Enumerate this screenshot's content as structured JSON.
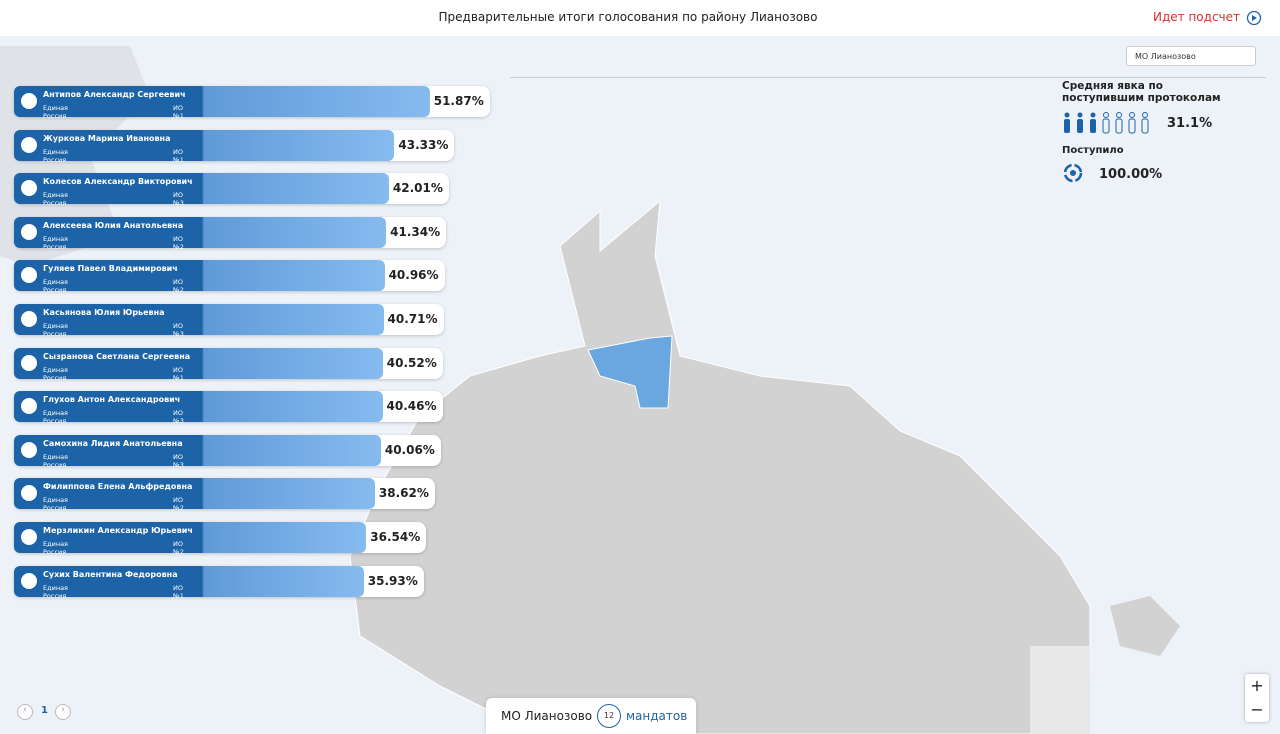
{
  "header": {
    "title": "Предварительные итоги голосования по району Лианозово",
    "status": "Идет подсчет"
  },
  "district_select": "МО Лианозово",
  "candidates": [
    {
      "name": "Антипов Александр Сергеевич",
      "party": "Единая Россия",
      "district": "ИО №1",
      "value": 51.87,
      "value_label": "51.87%"
    },
    {
      "name": "Журкова Марина Ивановна",
      "party": "Единая Россия",
      "district": "ИО №1",
      "value": 43.33,
      "value_label": "43.33%"
    },
    {
      "name": "Колесов Александр Викторович",
      "party": "Единая Россия",
      "district": "ИО №3",
      "value": 42.01,
      "value_label": "42.01%"
    },
    {
      "name": "Алексеева Юлия Анатольевна",
      "party": "Единая Россия",
      "district": "ИО №2",
      "value": 41.34,
      "value_label": "41.34%"
    },
    {
      "name": "Гуляев Павел Владимирович",
      "party": "Единая Россия",
      "district": "ИО №2",
      "value": 40.96,
      "value_label": "40.96%"
    },
    {
      "name": "Касьянова Юлия Юрьевна",
      "party": "Единая Россия",
      "district": "ИО №3",
      "value": 40.71,
      "value_label": "40.71%"
    },
    {
      "name": "Сызранова Светлана Сергеевна",
      "party": "Единая Россия",
      "district": "ИО №1",
      "value": 40.52,
      "value_label": "40.52%"
    },
    {
      "name": "Глухов Антон Александрович",
      "party": "Единая Россия",
      "district": "ИО №3",
      "value": 40.46,
      "value_label": "40.46%"
    },
    {
      "name": "Самохина Лидия Анатольевна",
      "party": "Единая Россия",
      "district": "ИО №3",
      "value": 40.06,
      "value_label": "40.06%"
    },
    {
      "name": "Филиппова Елена Альфредовна",
      "party": "Единая Россия",
      "district": "ИО №2",
      "value": 38.62,
      "value_label": "38.62%"
    },
    {
      "name": "Мерзликин Александр Юрьевич",
      "party": "Единая Россия",
      "district": "ИО №2",
      "value": 36.54,
      "value_label": "36.54%"
    },
    {
      "name": "Сухих Валентина Федоровна",
      "party": "Единая Россия",
      "district": "ИО №1",
      "value": 35.93,
      "value_label": "35.93%"
    }
  ],
  "turnout": {
    "label": "Средняя явка по поступившим протоколам",
    "value": "31.1%"
  },
  "received": {
    "label": "Поступило",
    "value": "100.00%"
  },
  "footer": {
    "district": "МО Лианозово",
    "mandates": "12",
    "mandates_label": "мандатов"
  },
  "pagination": {
    "page": "1"
  },
  "zoom": {
    "in": "+",
    "out": "−"
  }
}
